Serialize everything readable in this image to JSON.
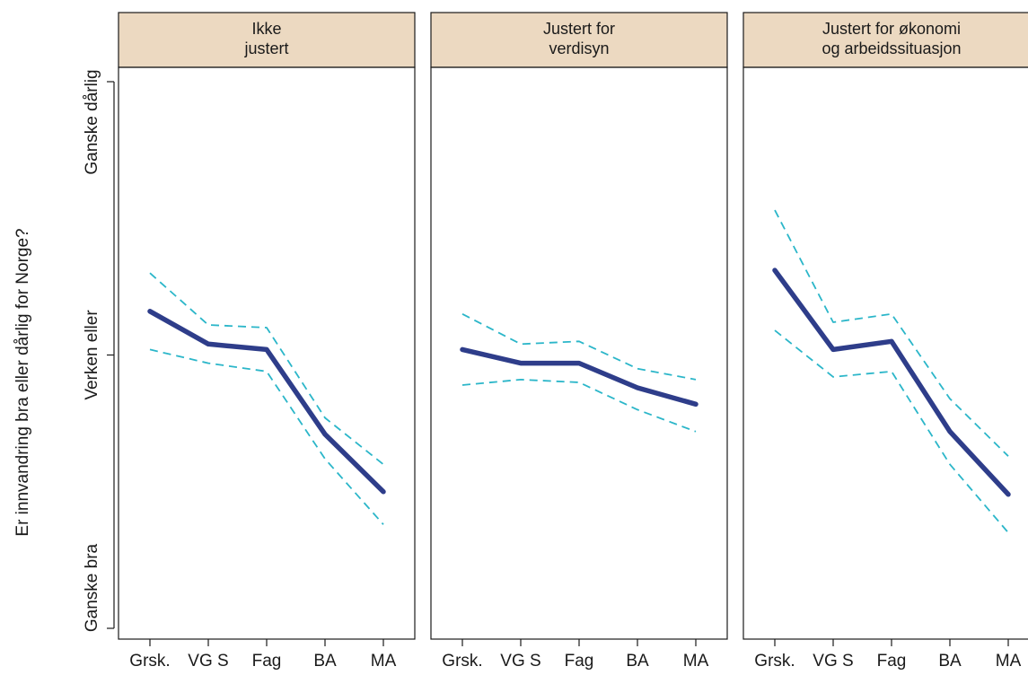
{
  "colors": {
    "strip_fill": "#ecd9c1",
    "estimate_line": "#2e3d8a",
    "ci_line": "#2bb6c9",
    "axis": "#1a1a1a"
  },
  "chart_data": {
    "type": "line",
    "ylabel": "Er innvandring bra eller dårlig for Norge?",
    "y_ticks": [
      {
        "value": 1,
        "label": "Ganske bra"
      },
      {
        "value": 2,
        "label": "Verken eller"
      },
      {
        "value": 3,
        "label": "Ganske dårlig"
      }
    ],
    "ylim": [
      0.95,
      3.05
    ],
    "categories": [
      "Grsk.",
      "VGS",
      "Fag",
      "BA",
      "MA"
    ],
    "x_tick_labels": [
      "Grsk.",
      "VG S",
      "Fag",
      "BA",
      "MA"
    ],
    "panels": [
      {
        "title_lines": [
          "Ikke",
          "justert"
        ],
        "series": [
          {
            "role": "estimate",
            "values": [
              2.16,
              2.04,
              2.02,
              1.71,
              1.5
            ]
          },
          {
            "role": "upper",
            "values": [
              2.3,
              2.11,
              2.1,
              1.77,
              1.6
            ]
          },
          {
            "role": "lower",
            "values": [
              2.02,
              1.97,
              1.94,
              1.62,
              1.38
            ]
          }
        ]
      },
      {
        "title_lines": [
          "Justert for",
          "verdisyn"
        ],
        "series": [
          {
            "role": "estimate",
            "values": [
              2.02,
              1.97,
              1.97,
              1.88,
              1.82
            ]
          },
          {
            "role": "upper",
            "values": [
              2.15,
              2.04,
              2.05,
              1.95,
              1.91
            ]
          },
          {
            "role": "lower",
            "values": [
              1.89,
              1.91,
              1.9,
              1.8,
              1.72
            ]
          }
        ]
      },
      {
        "title_lines": [
          "Justert for økonomi",
          "og arbeidssituasjon"
        ],
        "series": [
          {
            "role": "estimate",
            "values": [
              2.31,
              2.02,
              2.05,
              1.72,
              1.49
            ]
          },
          {
            "role": "upper",
            "values": [
              2.53,
              2.12,
              2.15,
              1.84,
              1.63
            ]
          },
          {
            "role": "lower",
            "values": [
              2.09,
              1.92,
              1.94,
              1.6,
              1.35
            ]
          }
        ]
      }
    ],
    "grid": false,
    "legend": "none"
  }
}
